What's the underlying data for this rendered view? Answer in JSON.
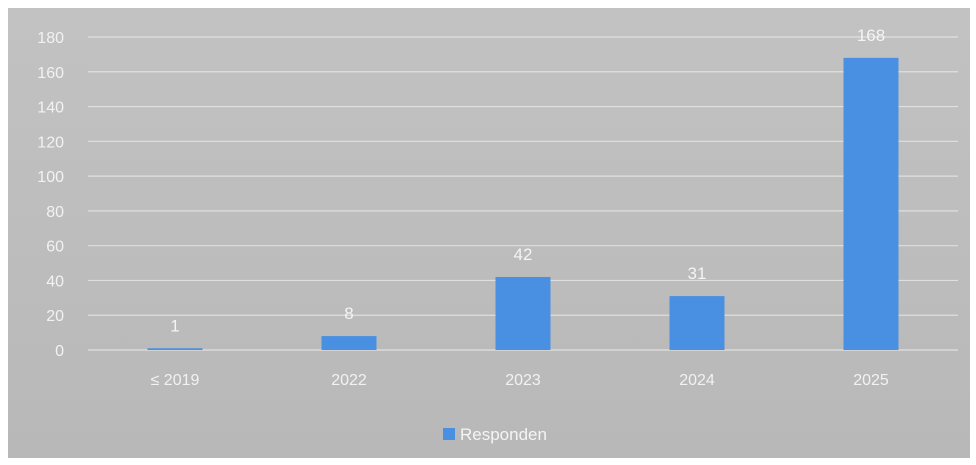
{
  "chart_data": {
    "type": "bar",
    "categories": [
      "≤ 2019",
      "2022",
      "2023",
      "2024",
      "2025"
    ],
    "series": [
      {
        "name": "Responden",
        "values": [
          1,
          8,
          42,
          31,
          168
        ]
      }
    ],
    "ylim": [
      0,
      180
    ],
    "yticks": [
      0,
      20,
      40,
      60,
      80,
      100,
      120,
      140,
      160,
      180
    ],
    "grid": true,
    "legend": "bottom-center",
    "colors": {
      "bar": "#4a90e2",
      "text": "#f2f2f2",
      "gridline": "#e6e6e6"
    }
  }
}
